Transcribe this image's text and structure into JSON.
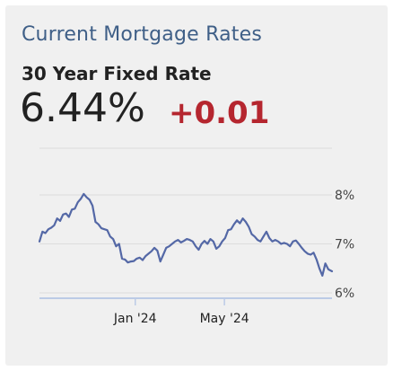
{
  "card": {
    "title": "Current Mortgage Rates",
    "subtitle": "30 Year Fixed Rate",
    "rate": "6.44%",
    "change": "+0.01"
  },
  "colors": {
    "title": "#3f5f87",
    "change_positive": "#b5262f",
    "series_line": "#5468a6",
    "axis_line": "#bccbe6",
    "gridline": "#dddddd"
  },
  "chart_data": {
    "type": "line",
    "title": "",
    "xlabel": "",
    "ylabel": "",
    "ylim": [
      6.0,
      8.0
    ],
    "y_ticks": [
      {
        "value": 8,
        "label": "8%"
      },
      {
        "value": 7,
        "label": "7%"
      },
      {
        "value": 6,
        "label": "6%"
      }
    ],
    "x_ticks": [
      {
        "value": "2024-01-01",
        "label": "Jan '24"
      },
      {
        "value": "2024-05-01",
        "label": "May '24"
      }
    ],
    "xlim": [
      "2023-08-24",
      "2024-09-24"
    ],
    "grid": true,
    "series": [
      {
        "x": [
          "2023-08-24",
          "2023-08-28",
          "2023-09-01",
          "2023-09-05",
          "2023-09-09",
          "2023-09-13",
          "2023-09-17",
          "2023-09-21",
          "2023-09-25",
          "2023-09-29",
          "2023-10-03",
          "2023-10-07",
          "2023-10-11",
          "2023-10-15",
          "2023-10-19",
          "2023-10-23",
          "2023-10-27",
          "2023-10-31",
          "2023-11-04",
          "2023-11-08",
          "2023-11-12",
          "2023-11-16",
          "2023-11-20",
          "2023-11-24",
          "2023-11-28",
          "2023-12-02",
          "2023-12-06",
          "2023-12-10",
          "2023-12-14",
          "2023-12-18",
          "2023-12-22",
          "2023-12-26",
          "2023-12-30",
          "2024-01-03",
          "2024-01-07",
          "2024-01-11",
          "2024-01-15",
          "2024-01-19",
          "2024-01-23",
          "2024-01-27",
          "2024-01-31",
          "2024-02-04",
          "2024-02-08",
          "2024-02-12",
          "2024-02-16",
          "2024-02-20",
          "2024-02-24",
          "2024-02-28",
          "2024-03-03",
          "2024-03-07",
          "2024-03-11",
          "2024-03-15",
          "2024-03-19",
          "2024-03-23",
          "2024-03-27",
          "2024-03-31",
          "2024-04-04",
          "2024-04-08",
          "2024-04-12",
          "2024-04-16",
          "2024-04-20",
          "2024-04-24",
          "2024-04-28",
          "2024-05-02",
          "2024-05-06",
          "2024-05-10",
          "2024-05-14",
          "2024-05-18",
          "2024-05-22",
          "2024-05-26",
          "2024-05-30",
          "2024-06-03",
          "2024-06-07",
          "2024-06-11",
          "2024-06-15",
          "2024-06-19",
          "2024-06-23",
          "2024-06-27",
          "2024-07-01",
          "2024-07-05",
          "2024-07-09",
          "2024-07-13",
          "2024-07-17",
          "2024-07-21",
          "2024-07-25",
          "2024-07-29",
          "2024-08-02",
          "2024-08-06",
          "2024-08-10",
          "2024-08-14",
          "2024-08-18",
          "2024-08-22",
          "2024-08-26",
          "2024-08-30",
          "2024-09-03",
          "2024-09-07",
          "2024-09-11",
          "2024-09-15",
          "2024-09-19",
          "2024-09-24"
        ],
        "y": [
          7.05,
          7.25,
          7.22,
          7.3,
          7.33,
          7.38,
          7.52,
          7.47,
          7.6,
          7.62,
          7.55,
          7.7,
          7.72,
          7.85,
          7.92,
          8.02,
          7.95,
          7.9,
          7.78,
          7.45,
          7.4,
          7.32,
          7.3,
          7.28,
          7.15,
          7.1,
          6.95,
          7.0,
          6.7,
          6.68,
          6.62,
          6.64,
          6.65,
          6.7,
          6.72,
          6.67,
          6.75,
          6.8,
          6.85,
          6.92,
          6.86,
          6.64,
          6.78,
          6.92,
          6.95,
          7.0,
          7.05,
          7.08,
          7.03,
          7.06,
          7.1,
          7.08,
          7.05,
          6.95,
          6.88,
          7.0,
          7.06,
          7.0,
          7.1,
          7.05,
          6.9,
          6.95,
          7.05,
          7.12,
          7.28,
          7.3,
          7.4,
          7.48,
          7.42,
          7.52,
          7.45,
          7.35,
          7.2,
          7.15,
          7.08,
          7.05,
          7.15,
          7.25,
          7.12,
          7.05,
          7.08,
          7.05,
          7.0,
          7.02,
          7.0,
          6.95,
          7.05,
          7.07,
          7.0,
          6.92,
          6.85,
          6.8,
          6.78,
          6.82,
          6.68,
          6.5,
          6.35,
          6.6,
          6.48,
          6.44
        ]
      }
    ]
  }
}
